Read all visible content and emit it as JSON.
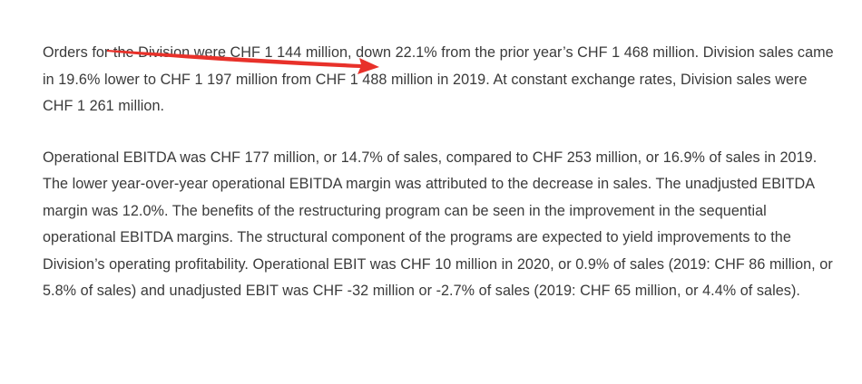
{
  "paragraphs": [
    {
      "text": "Orders for the Division were CHF 1 144 million, down 22.1% from the prior year’s CHF 1 468 million. Division sales came in 19.6% lower to CHF 1 197 million from CHF 1 488 million in 2019. At constant exchange rates, Division sales were CHF 1 261 million."
    },
    {
      "text": "Operational EBITDA was CHF 177 million, or 14.7% of sales, compared to CHF 253 million, or 16.9% of sales in 2019. The lower year-over-year operational EBITDA margin was attributed to the decrease in sales. The unadjusted EBITDA margin was 12.0%. The benefits of the restructuring program can be seen in the improvement in the sequential operational EBITDA margins. The structural component of the programs are expected to yield improvements to the Division’s operating profitability. Operational EBIT was CHF 10 million in 2020, or 0.9% of sales (2019: CHF 86 million, or 5.8% of sales) and unadjusted EBIT was CHF -32 million or -2.7% of sales (2019: CHF 65 million, or 4.4% of sales)."
    }
  ],
  "annotation": {
    "arrow_color": "#e8312a"
  }
}
